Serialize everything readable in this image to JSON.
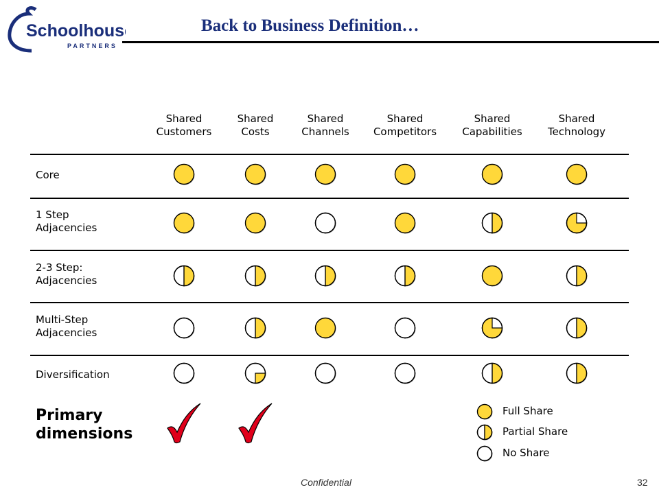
{
  "header": {
    "logo_text": "Schoolhouse",
    "logo_subtext": "PARTNERS",
    "title": "Back to Business Definition…"
  },
  "columns": [
    "Shared\nCustomers",
    "Shared\nCosts",
    "Shared\nChannels",
    "Shared\nCompetitors",
    "Shared\nCapabilities",
    "Shared\nTechnology"
  ],
  "rows": [
    {
      "label": "Core",
      "values": [
        "full",
        "full",
        "full",
        "full",
        "full",
        "full"
      ]
    },
    {
      "label": "1 Step\nAdjacencies",
      "values": [
        "full",
        "full",
        "none",
        "full",
        "half",
        "quarter-empty"
      ]
    },
    {
      "label": "2-3 Step:\nAdjacencies",
      "values": [
        "half",
        "half",
        "half",
        "half",
        "full",
        "half"
      ]
    },
    {
      "label": "Multi-Step\nAdjacencies",
      "values": [
        "none",
        "half",
        "full",
        "none",
        "three-quarter",
        "half"
      ]
    },
    {
      "label": "Diversification",
      "values": [
        "none",
        "quarter",
        "none",
        "none",
        "half",
        "half"
      ]
    }
  ],
  "primary_label": "Primary\ndimensions",
  "primary_checked_columns": [
    0,
    1
  ],
  "legend": [
    {
      "key": "full",
      "label": "Full Share"
    },
    {
      "key": "half",
      "label": "Partial Share"
    },
    {
      "key": "none",
      "label": "No Share"
    }
  ],
  "colors": {
    "fill": "#ffd83a",
    "title": "#1a2e7a",
    "check": "#e0001b",
    "logo": "#1a2e7a"
  },
  "footer": {
    "confidential": "Confidential",
    "page": "32"
  }
}
